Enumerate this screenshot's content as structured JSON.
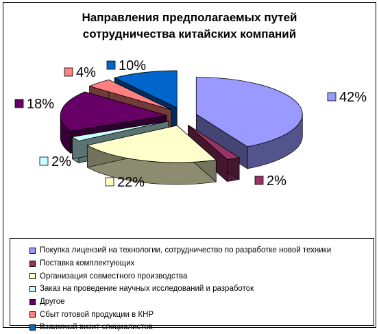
{
  "chart_data": {
    "type": "pie",
    "title": "Направления предполагаемых путей\nсотрудничества китайских компаний",
    "categories": [
      "Покупка лицензий на  технологии, сотрудничество по разработке новой техники",
      "Поставка комплектующих",
      "Организация совместного производства",
      "Заказ на проведение научных исследований и разработок",
      "Другое",
      "Сбыт готовой продукции в КНР",
      "Взаимный визит специалистов"
    ],
    "values": [
      42,
      2,
      22,
      2,
      18,
      4,
      10
    ],
    "data_labels": [
      "42%",
      "2%",
      "22%",
      "2%",
      "18%",
      "4%",
      "10%"
    ],
    "colors": [
      "#9999ff",
      "#993366",
      "#ffffcc",
      "#ccffff",
      "#660066",
      "#ff8080",
      "#0066cc"
    ],
    "exploded": true,
    "legend_position": "bottom"
  }
}
